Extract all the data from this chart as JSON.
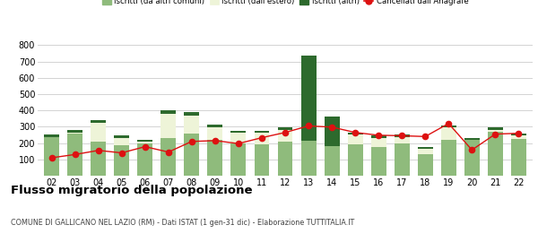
{
  "years": [
    "02",
    "03",
    "04",
    "05",
    "06",
    "07",
    "08",
    "09",
    "10",
    "11",
    "12",
    "13",
    "14",
    "15",
    "16",
    "17",
    "18",
    "19",
    "20",
    "21",
    "22"
  ],
  "iscritti_altri_comuni": [
    250,
    260,
    210,
    185,
    200,
    230,
    260,
    220,
    200,
    190,
    210,
    215,
    180,
    195,
    175,
    200,
    130,
    220,
    230,
    270,
    225
  ],
  "iscritti_estero": [
    0,
    20,
    130,
    60,
    20,
    170,
    130,
    95,
    75,
    85,
    85,
    0,
    0,
    70,
    70,
    50,
    45,
    90,
    0,
    25,
    35
  ],
  "iscritti_altri": [
    0,
    0,
    0,
    0,
    0,
    0,
    0,
    0,
    0,
    0,
    0,
    520,
    185,
    0,
    0,
    0,
    0,
    0,
    0,
    0,
    0
  ],
  "cancellati": [
    110,
    130,
    155,
    140,
    178,
    145,
    210,
    215,
    197,
    233,
    265,
    305,
    298,
    265,
    248,
    245,
    240,
    320,
    158,
    255,
    260
  ],
  "color_altri_comuni": "#8fbb7c",
  "color_estero": "#eef4d8",
  "color_altri": "#2d6a2d",
  "color_cancellati": "#dd1111",
  "bg_color": "#ffffff",
  "grid_color": "#cccccc",
  "title": "Flusso migratorio della popolazione",
  "subtitle": "COMUNE DI GALLICANO NEL LAZIO (RM) - Dati ISTAT (1 gen-31 dic) - Elaborazione TUTTITALIA.IT",
  "legend_labels": [
    "Iscritti (da altri comuni)",
    "Iscritti (dall'estero)",
    "Iscritti (altri)",
    "Cancellati dall'Anagrafe"
  ],
  "ylim": [
    0,
    800
  ],
  "yticks": [
    0,
    100,
    200,
    300,
    400,
    500,
    600,
    700,
    800
  ]
}
